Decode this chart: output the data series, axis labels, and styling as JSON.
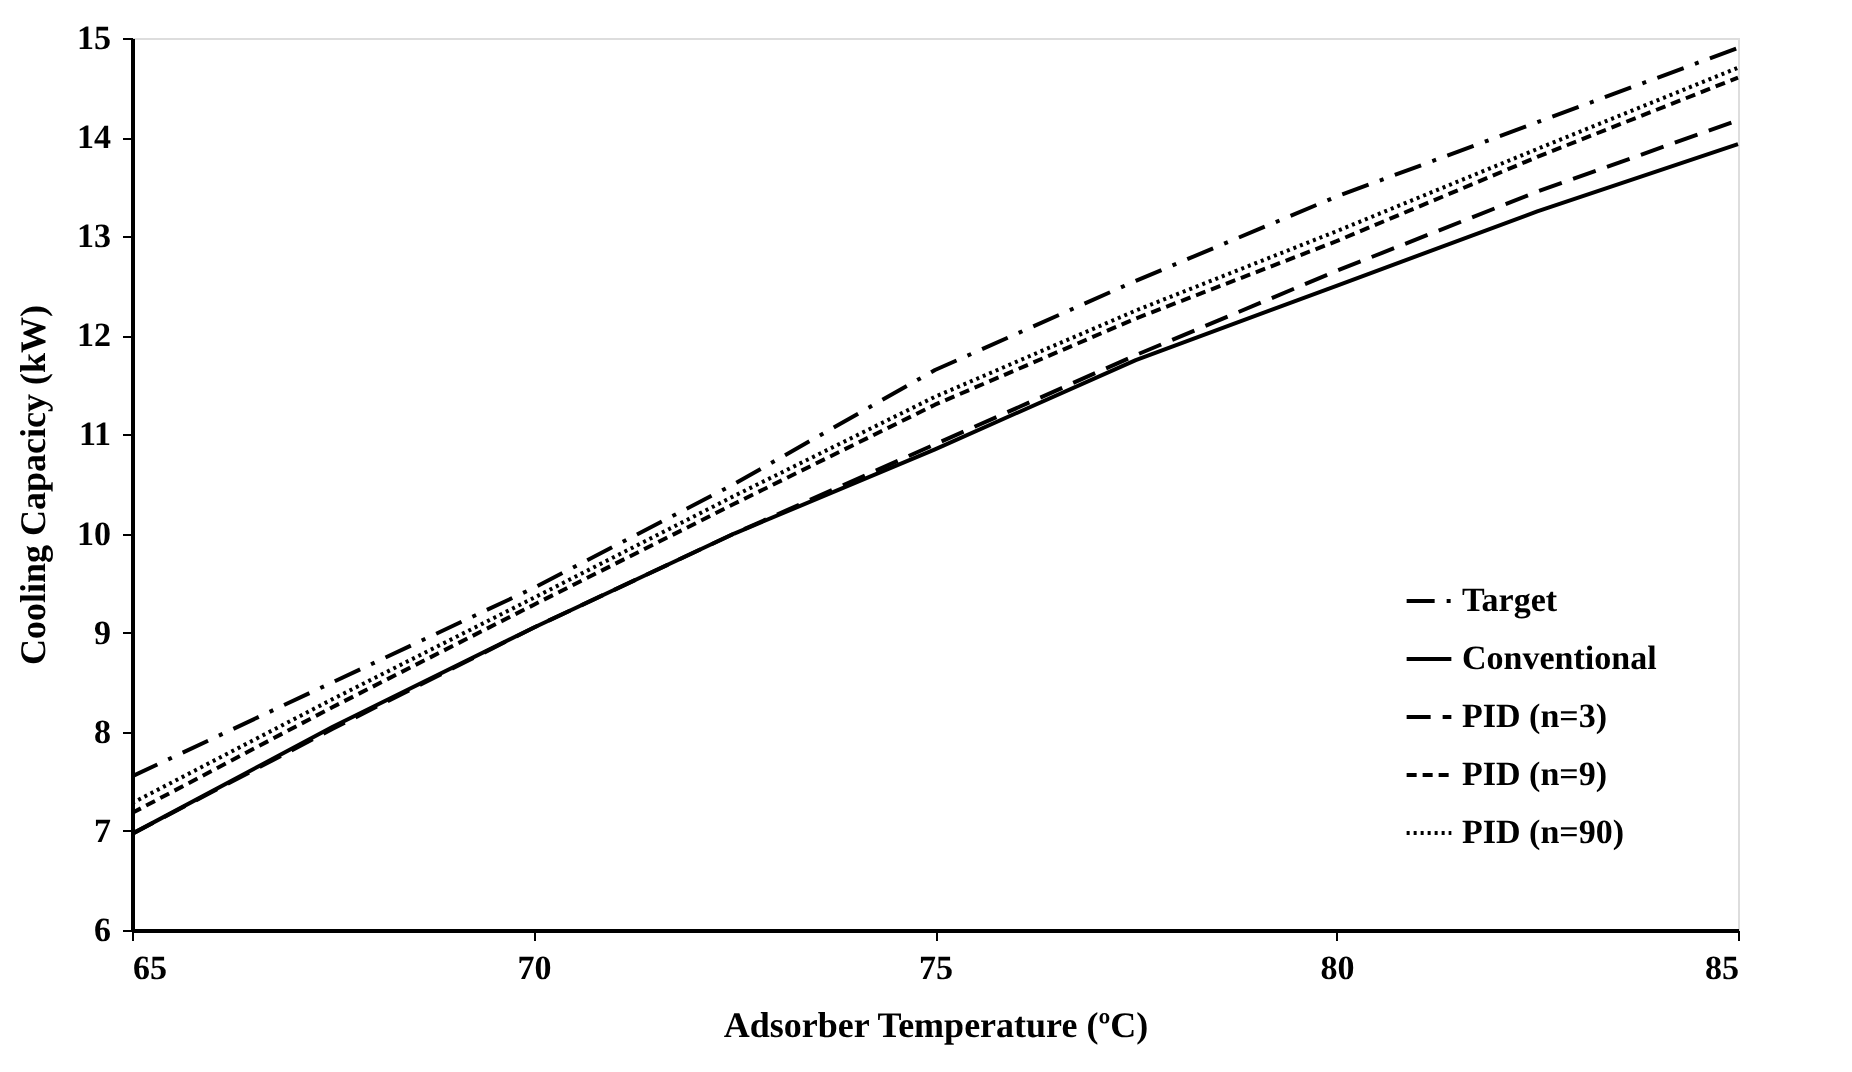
{
  "chart_data": {
    "type": "line",
    "xlabel": "Adsorber Temperature (ºC)",
    "ylabel": "Cooling Capacicy (kW)",
    "x": [
      65,
      67.5,
      70,
      72.5,
      75,
      77.5,
      80,
      82.5,
      85
    ],
    "xlim": [
      65,
      85
    ],
    "xticks": [
      65,
      70,
      75,
      80,
      85
    ],
    "ylim": [
      6,
      15
    ],
    "yticks": [
      6,
      7,
      8,
      9,
      10,
      11,
      12,
      13,
      14,
      15
    ],
    "grid": false,
    "legend": "bottom right",
    "marker": "none",
    "series": [
      {
        "name": "Target",
        "color": "#000000",
        "line_style": "dashdot",
        "values": [
          7.55,
          8.5,
          9.45,
          10.5,
          11.65,
          12.55,
          13.4,
          14.15,
          14.9
        ]
      },
      {
        "name": "Conventional",
        "color": "#000000",
        "line_style": "solid",
        "values": [
          6.97,
          8.05,
          9.05,
          10.0,
          10.85,
          11.75,
          12.5,
          13.25,
          13.93
        ]
      },
      {
        "name": "PID (n=3)",
        "color": "#000000",
        "line_style": "longdash",
        "values": [
          6.97,
          8.03,
          9.05,
          10.0,
          10.9,
          11.8,
          12.65,
          13.45,
          14.17
        ]
      },
      {
        "name": "PID (n=9)",
        "color": "#000000",
        "line_style": "dashed",
        "values": [
          7.18,
          8.25,
          9.28,
          10.3,
          11.3,
          12.17,
          12.95,
          13.8,
          14.6
        ]
      },
      {
        "name": "PID  (n=90)",
        "color": "#000000",
        "line_style": "dotted",
        "values": [
          7.28,
          8.33,
          9.35,
          10.38,
          11.38,
          12.25,
          13.05,
          13.88,
          14.7
        ]
      }
    ]
  }
}
